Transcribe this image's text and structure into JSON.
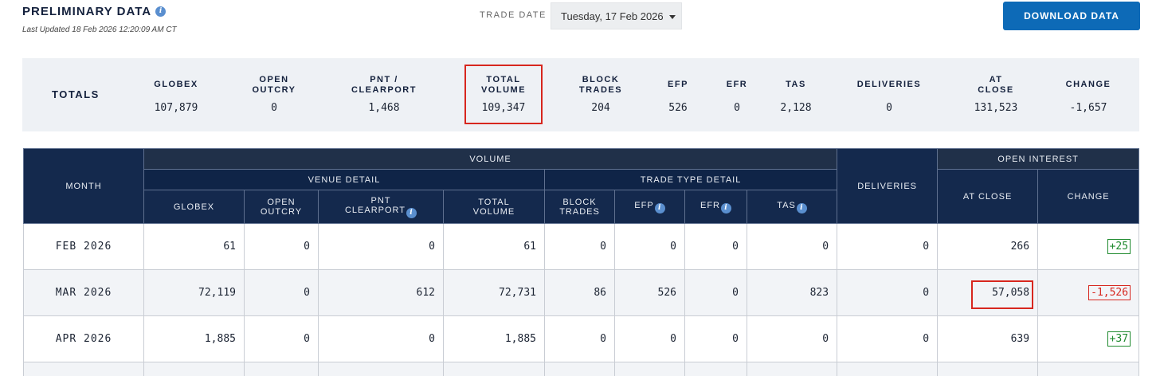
{
  "header": {
    "title": "PRELIMINARY DATA",
    "last_updated": "Last Updated 18 Feb 2026 12:20:09 AM CT",
    "trade_date_label": "TRADE DATE",
    "trade_date_value": "Tuesday, 17 Feb 2026",
    "download_label": "DOWNLOAD DATA"
  },
  "totals": {
    "label": "TOTALS",
    "columns": [
      {
        "h1": "GLOBEX",
        "h2": "",
        "value": "107,879"
      },
      {
        "h1": "OPEN",
        "h2": "OUTCRY",
        "value": "0"
      },
      {
        "h1": "PNT /",
        "h2": "CLEARPORT",
        "value": "1,468"
      },
      {
        "h1": "TOTAL",
        "h2": "VOLUME",
        "value": "109,347"
      },
      {
        "h1": "BLOCK",
        "h2": "TRADES",
        "value": "204"
      },
      {
        "h1": "EFP",
        "h2": "",
        "value": "526"
      },
      {
        "h1": "EFR",
        "h2": "",
        "value": "0"
      },
      {
        "h1": "TAS",
        "h2": "",
        "value": "2,128"
      },
      {
        "h1": "DELIVERIES",
        "h2": "",
        "value": "0"
      },
      {
        "h1": "AT",
        "h2": "CLOSE",
        "value": "131,523"
      },
      {
        "h1": "CHANGE",
        "h2": "",
        "value": "-1,657"
      }
    ]
  },
  "table": {
    "month_header": "MONTH",
    "volume_header": "VOLUME",
    "venue_detail_header": "VENUE DETAIL",
    "trade_type_header": "TRADE TYPE DETAIL",
    "deliveries_header": "DELIVERIES",
    "open_interest_header": "OPEN INTEREST",
    "columns": {
      "globex": "GLOBEX",
      "open_outcry_1": "OPEN",
      "open_outcry_2": "OUTCRY",
      "pnt_1": "PNT",
      "pnt_2": "CLEARPORT",
      "total_1": "TOTAL",
      "total_2": "VOLUME",
      "block_1": "BLOCK",
      "block_2": "TRADES",
      "efp": "EFP",
      "efr": "EFR",
      "tas": "TAS",
      "at_close": "AT CLOSE",
      "change": "CHANGE"
    },
    "rows": [
      {
        "month": "FEB 2026",
        "globex": "61",
        "open_outcry": "0",
        "pnt": "0",
        "total": "61",
        "block": "0",
        "efp": "0",
        "efr": "0",
        "tas": "0",
        "deliveries": "0",
        "at_close": "266",
        "change": "+25"
      },
      {
        "month": "MAR 2026",
        "globex": "72,119",
        "open_outcry": "0",
        "pnt": "612",
        "total": "72,731",
        "block": "86",
        "efp": "526",
        "efr": "0",
        "tas": "823",
        "deliveries": "0",
        "at_close": "57,058",
        "change": "-1,526"
      },
      {
        "month": "APR 2026",
        "globex": "1,885",
        "open_outcry": "0",
        "pnt": "0",
        "total": "1,885",
        "block": "0",
        "efp": "0",
        "efr": "0",
        "tas": "0",
        "deliveries": "0",
        "at_close": "639",
        "change": "+37"
      }
    ]
  },
  "colors": {
    "header_navy": "#14294d",
    "download_blue": "#0d6ab7",
    "highlight_red": "#d7261e",
    "positive_green": "#1f8a2e",
    "negative_red": "#d7261e"
  }
}
